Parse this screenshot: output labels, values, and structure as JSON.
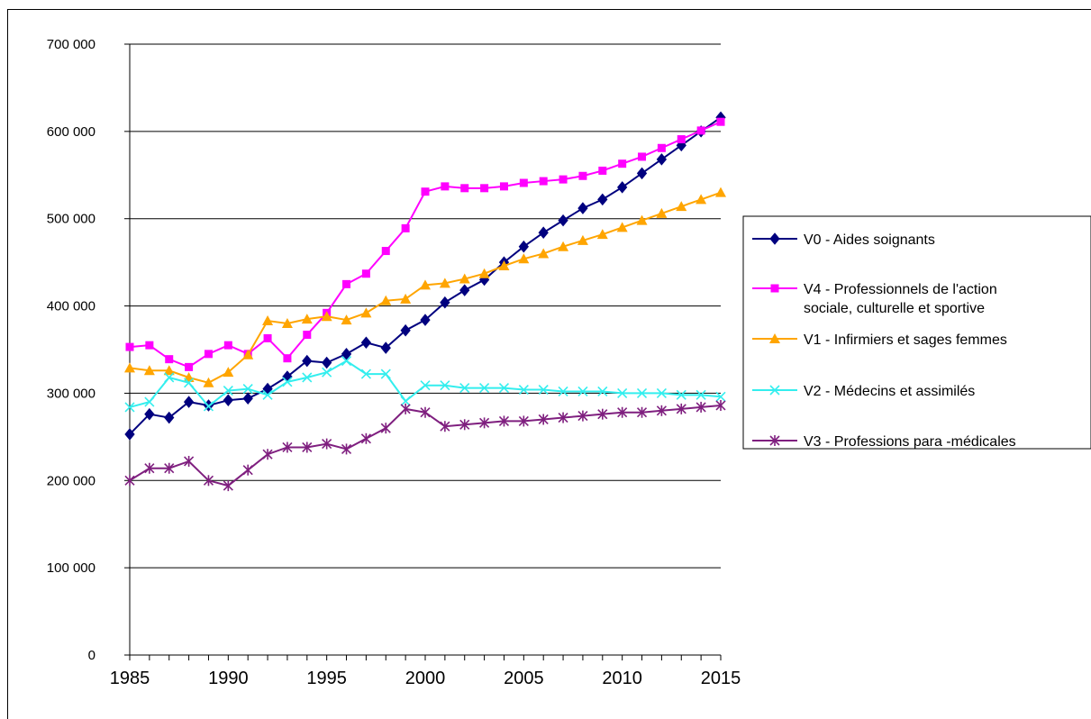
{
  "chart_data": {
    "type": "line",
    "title": "",
    "xlabel": "",
    "ylabel": "",
    "xlim": [
      1985,
      2015
    ],
    "ylim": [
      0,
      700000
    ],
    "x_ticks": [
      1985,
      1990,
      1995,
      2000,
      2005,
      2010,
      2015
    ],
    "x_tick_labels": [
      "1985",
      "1990",
      "1995",
      "2000",
      "2005",
      "2010",
      "2015"
    ],
    "y_ticks": [
      0,
      100000,
      200000,
      300000,
      400000,
      500000,
      600000,
      700000
    ],
    "y_tick_labels": [
      "0",
      "100 000",
      "200 000",
      "300 000",
      "400 000",
      "500 000",
      "600 000",
      "700 000"
    ],
    "grid": "horizontal",
    "legend_position": "right",
    "x": [
      1985,
      1986,
      1987,
      1988,
      1989,
      1990,
      1991,
      1992,
      1993,
      1994,
      1995,
      1996,
      1997,
      1998,
      1999,
      2000,
      2001,
      2002,
      2003,
      2004,
      2005,
      2006,
      2007,
      2008,
      2009,
      2010,
      2011,
      2012,
      2013,
      2014,
      2015
    ],
    "series": [
      {
        "name": "V0 - Aides soignants",
        "color": "#00007f",
        "marker": "diamond",
        "values": [
          253000,
          276000,
          272000,
          290000,
          286000,
          292000,
          294000,
          305000,
          319000,
          337000,
          335000,
          345000,
          358000,
          352000,
          372000,
          384000,
          404000,
          418000,
          430000,
          450000,
          468000,
          484000,
          498000,
          512000,
          522000,
          536000,
          552000,
          568000,
          584000,
          600000,
          616000
        ]
      },
      {
        "name": "V4 - Professionnels de l'action sociale, culturelle et sportive",
        "legend_lines": [
          "V4 - Professionnels de l'action",
          "sociale, culturelle et sportive"
        ],
        "color": "#ff00ff",
        "marker": "square",
        "values": [
          353000,
          355000,
          339000,
          330000,
          345000,
          355000,
          345000,
          363000,
          340000,
          367000,
          392000,
          425000,
          437000,
          463000,
          489000,
          531000,
          537000,
          535000,
          535000,
          537000,
          541000,
          543000,
          545000,
          549000,
          555000,
          563000,
          571000,
          581000,
          591000,
          601000,
          611000
        ]
      },
      {
        "name": "V1 - Infirmiers et sages femmes",
        "color": "#ffa500",
        "marker": "triangle",
        "values": [
          329000,
          326000,
          326000,
          318000,
          312000,
          324000,
          344000,
          383000,
          380000,
          385000,
          388000,
          384000,
          392000,
          406000,
          408000,
          424000,
          426000,
          431000,
          437000,
          446000,
          454000,
          460000,
          468000,
          475000,
          482000,
          490000,
          498000,
          506000,
          514000,
          522000,
          530000
        ]
      },
      {
        "name": "V2 - Médecins et assimilés",
        "color": "#33eeee",
        "marker": "x",
        "values": [
          284000,
          290000,
          318000,
          312000,
          285000,
          303000,
          305000,
          298000,
          313000,
          318000,
          324000,
          337000,
          322000,
          322000,
          291000,
          309000,
          309000,
          306000,
          306000,
          306000,
          304000,
          304000,
          302000,
          302000,
          302000,
          300000,
          300000,
          300000,
          298000,
          298000,
          296000
        ]
      },
      {
        "name": "V3 - Professions para -médicales",
        "color": "#7f1f7f",
        "marker": "star",
        "values": [
          200000,
          214000,
          214000,
          222000,
          200000,
          194000,
          212000,
          230000,
          238000,
          238000,
          242000,
          236000,
          248000,
          260000,
          282000,
          278000,
          262000,
          264000,
          266000,
          268000,
          268000,
          270000,
          272000,
          274000,
          276000,
          278000,
          278000,
          280000,
          282000,
          284000,
          286000
        ]
      }
    ]
  }
}
